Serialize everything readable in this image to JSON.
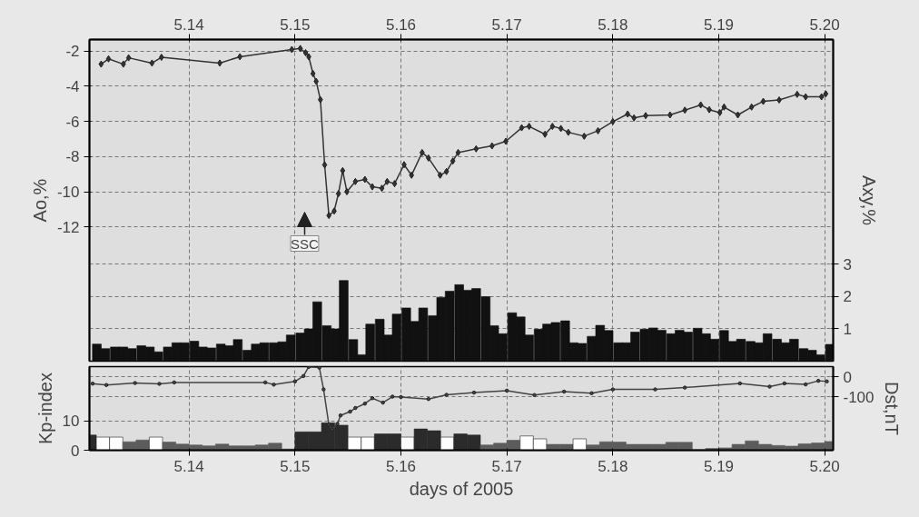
{
  "chart_data": [
    {
      "type": "line",
      "ylabel": "Ao,%",
      "y2label": "Axy,%",
      "xlim": [
        5.1306,
        5.2008
      ],
      "xticks": [
        {
          "value": 5.14,
          "label": "5.14"
        },
        {
          "value": 5.15,
          "label": "5.15"
        },
        {
          "value": 5.16,
          "label": "5.16"
        },
        {
          "value": 5.17,
          "label": "5.17"
        },
        {
          "value": 5.18,
          "label": "5.18"
        },
        {
          "value": 5.19,
          "label": "5.19"
        },
        {
          "value": 5.2,
          "label": "5.20"
        }
      ],
      "ylim": [
        -19.64,
        -1.34
      ],
      "yticks": [
        -12,
        -10,
        -8,
        -6,
        -4,
        -2
      ],
      "y2lim": [
        0,
        9.97
      ],
      "y2ticks": [
        1,
        2,
        3
      ],
      "grid": true,
      "annotations": [
        "SSC"
      ],
      "series": [
        {
          "type": "bar",
          "axis": "y2",
          "color": "#111111",
          "x": [
            5.1313,
            5.1321,
            5.133,
            5.1338,
            5.1346,
            5.1355,
            5.1363,
            5.1371,
            5.138,
            5.1388,
            5.1396,
            5.1405,
            5.1413,
            5.1421,
            5.143,
            5.1438,
            5.1446,
            5.1455,
            5.1463,
            5.1471,
            5.148,
            5.1488,
            5.1496,
            5.1505,
            5.1513,
            5.1521,
            5.153,
            5.1538,
            5.1546,
            5.1555,
            5.1563,
            5.1571,
            5.158,
            5.1588,
            5.1596,
            5.1605,
            5.1613,
            5.1621,
            5.163,
            5.1638,
            5.1646,
            5.1655,
            5.1663,
            5.1671,
            5.168,
            5.1688,
            5.1696,
            5.1705,
            5.1713,
            5.1721,
            5.173,
            5.1738,
            5.1746,
            5.1755,
            5.1763,
            5.1771,
            5.178,
            5.1788,
            5.1796,
            5.1805,
            5.1813,
            5.1821,
            5.183,
            5.1838,
            5.1846,
            5.1855,
            5.1863,
            5.1871,
            5.188,
            5.1888,
            5.1896,
            5.1905,
            5.1913,
            5.1921,
            5.193,
            5.1938,
            5.1946,
            5.1955,
            5.1963,
            5.1971,
            5.198,
            5.1988,
            5.1996,
            5.2005
          ],
          "values": [
            0.53,
            0.39,
            0.44,
            0.44,
            0.39,
            0.48,
            0.44,
            0.29,
            0.44,
            0.57,
            0.57,
            0.62,
            0.44,
            0.41,
            0.53,
            0.48,
            0.67,
            0.34,
            0.53,
            0.57,
            0.57,
            0.6,
            0.81,
            0.87,
            1.0,
            1.84,
            1.1,
            1.0,
            2.5,
            0.67,
            0.2,
            1.15,
            1.3,
            0.81,
            1.46,
            1.65,
            1.23,
            1.65,
            1.41,
            1.98,
            2.17,
            2.37,
            2.2,
            2.25,
            2.0,
            1.1,
            0.85,
            1.5,
            1.37,
            0.81,
            0.99,
            1.15,
            1.2,
            1.25,
            0.57,
            0.55,
            0.77,
            1.11,
            0.95,
            0.57,
            0.57,
            0.9,
            0.99,
            1.03,
            0.96,
            0.85,
            0.96,
            0.9,
            1.02,
            0.85,
            0.68,
            0.95,
            0.61,
            0.68,
            0.61,
            0.57,
            0.85,
            0.68,
            0.57,
            0.68,
            0.39,
            0.34,
            0.2,
            0.52
          ]
        },
        {
          "color": "#333333",
          "marker": "diamond",
          "x": [
            5.1317,
            5.1324,
            5.1338,
            5.1343,
            5.1365,
            5.1374,
            5.1429,
            5.1448,
            5.1497,
            5.1505,
            5.151,
            5.1513,
            5.1517,
            5.152,
            5.1524,
            5.1528,
            5.1532,
            5.1537,
            5.1541,
            5.1545,
            5.1549,
            5.1557,
            5.1566,
            5.1573,
            5.1582,
            5.1587,
            5.1594,
            5.1603,
            5.161,
            5.162,
            5.1626,
            5.1637,
            5.1643,
            5.1649,
            5.1654,
            5.1671,
            5.1686,
            5.1699,
            5.1714,
            5.1721,
            5.1736,
            5.1743,
            5.1751,
            5.1758,
            5.1773,
            5.1786,
            5.18,
            5.1814,
            5.182,
            5.1831,
            5.1854,
            5.1868,
            5.1883,
            5.1891,
            5.1901,
            5.1905,
            5.1918,
            5.1931,
            5.1942,
            5.1957,
            5.1974,
            5.1982,
            5.1997,
            5.2001
          ],
          "values": [
            -2.74,
            -2.44,
            -2.74,
            -2.38,
            -2.68,
            -2.35,
            -2.68,
            -2.32,
            -1.91,
            -1.85,
            -2.09,
            -2.32,
            -3.28,
            -3.72,
            -4.76,
            -8.47,
            -11.35,
            -11.1,
            -10.11,
            -8.8,
            -10.0,
            -9.42,
            -9.3,
            -9.72,
            -9.8,
            -9.42,
            -9.54,
            -8.46,
            -9.06,
            -7.77,
            -8.08,
            -9.06,
            -8.85,
            -8.25,
            -7.77,
            -7.56,
            -7.39,
            -7.13,
            -6.36,
            -6.28,
            -6.73,
            -6.28,
            -6.4,
            -6.62,
            -6.84,
            -6.53,
            -6.01,
            -5.58,
            -5.8,
            -5.67,
            -5.63,
            -5.36,
            -5.06,
            -5.33,
            -5.5,
            -5.18,
            -5.63,
            -5.18,
            -4.86,
            -4.78,
            -4.46,
            -4.6,
            -4.6,
            -4.43
          ]
        }
      ]
    },
    {
      "type": "bar",
      "xlabel": "days of 2005",
      "ylabel": "Kp-index",
      "y2label": "Dst,nT",
      "xlim": [
        5.1306,
        5.2008
      ],
      "xticks": [
        {
          "value": 5.14,
          "label": "5.14"
        },
        {
          "value": 5.15,
          "label": "5.15"
        },
        {
          "value": 5.16,
          "label": "5.16"
        },
        {
          "value": 5.17,
          "label": "5.17"
        },
        {
          "value": 5.18,
          "label": "5.18"
        },
        {
          "value": 5.19,
          "label": "5.19"
        },
        {
          "value": 5.2,
          "label": "5.20"
        }
      ],
      "ylim": [
        0,
        28.7
      ],
      "yticks": [
        0,
        10
      ],
      "y2lim": [
        -368,
        50
      ],
      "y2ticks": [
        -100,
        0
      ],
      "grid": true,
      "series": [
        {
          "x": [
            5.130625,
            5.131875,
            5.133125,
            5.134375,
            5.135625,
            5.136875,
            5.138125,
            5.139375,
            5.140625,
            5.141875,
            5.143125,
            5.144375,
            5.145625,
            5.146875,
            5.148125,
            5.149375,
            5.150625,
            5.151875,
            5.153125,
            5.154375,
            5.155625,
            5.156875,
            5.158125,
            5.159375,
            5.160625,
            5.161875,
            5.163125,
            5.164375,
            5.165625,
            5.166875,
            5.168125,
            5.169375,
            5.170625,
            5.171875,
            5.173125,
            5.174375,
            5.175625,
            5.176875,
            5.178125,
            5.179375,
            5.180625,
            5.181875,
            5.183125,
            5.184375,
            5.185625,
            5.186875,
            5.188125,
            5.189375,
            5.190625,
            5.191875,
            5.193125,
            5.194375,
            5.195625,
            5.196875,
            5.198125,
            5.199375,
            5.200625
          ],
          "values": [
            5.2,
            4.5,
            4.5,
            2.9,
            3.5,
            4.5,
            2.8,
            2.1,
            1.8,
            1.5,
            2.1,
            1.5,
            1.5,
            1.8,
            2.4,
            0.4,
            6.3,
            6.3,
            9.4,
            8.6,
            4.5,
            4.5,
            5.6,
            5.6,
            4.5,
            7.3,
            6.7,
            4.5,
            5.6,
            5.2,
            1.8,
            2.4,
            3.4,
            4.9,
            3.9,
            2.0,
            2.0,
            3.9,
            1.8,
            2.9,
            2.8,
            2.0,
            2.0,
            2.0,
            2.7,
            2.7,
            0,
            0.6,
            0.8,
            2.0,
            3.2,
            2.0,
            1.6,
            1.4,
            2.2,
            2.5,
            3.0
          ],
          "colors": [
            "#2b2b2b",
            "#ffffff",
            "#ffffff",
            "#5c5c5c",
            "#5c5c5c",
            "#ffffff",
            "#5c5c5c",
            "#5c5c5c",
            "#5c5c5c",
            "#5c5c5c",
            "#5c5c5c",
            "#5c5c5c",
            "#5c5c5c",
            "#5c5c5c",
            "#5c5c5c",
            "#5c5c5c",
            "#2b2b2b",
            "#2b2b2b",
            "#2b2b2b",
            "#2b2b2b",
            "#ffffff",
            "#ffffff",
            "#2b2b2b",
            "#2b2b2b",
            "#ffffff",
            "#2b2b2b",
            "#2b2b2b",
            "#ffffff",
            "#2b2b2b",
            "#2b2b2b",
            "#5c5c5c",
            "#5c5c5c",
            "#5c5c5c",
            "#ffffff",
            "#ffffff",
            "#5c5c5c",
            "#5c5c5c",
            "#ffffff",
            "#5c5c5c",
            "#5c5c5c",
            "#5c5c5c",
            "#5c5c5c",
            "#5c5c5c",
            "#5c5c5c",
            "#5c5c5c",
            "#5c5c5c",
            "#5c5c5c",
            "#5c5c5c",
            "#5c5c5c",
            "#5c5c5c",
            "#5c5c5c",
            "#5c5c5c",
            "#5c5c5c",
            "#5c5c5c",
            "#5c5c5c",
            "#5c5c5c",
            "#5c5c5c"
          ]
        },
        {
          "type": "line",
          "axis": "y2",
          "color": "#444444",
          "marker": "circle",
          "x": [
            5.1309,
            5.1322,
            5.1349,
            5.1372,
            5.1386,
            5.1472,
            5.148,
            5.15,
            5.1508,
            5.1513,
            5.1523,
            5.1527,
            5.1532,
            5.1535,
            5.154,
            5.1543,
            5.1552,
            5.1557,
            5.1566,
            5.1573,
            5.1583,
            5.1592,
            5.16,
            5.1626,
            5.1643,
            5.1669,
            5.17,
            5.1726,
            5.1754,
            5.178,
            5.18,
            5.184,
            5.1868,
            5.192,
            5.1948,
            5.1962,
            5.1982,
            5.1994,
            5.2002
          ],
          "values": [
            -35,
            -42,
            -32,
            -36,
            -29,
            -29,
            -40,
            -24,
            3,
            49,
            45,
            -64,
            -240,
            -264,
            -236,
            -194,
            -175,
            -157,
            -135,
            -108,
            -130,
            -100,
            -102,
            -112,
            -91,
            -80,
            -70,
            -92,
            -75,
            -83,
            -64,
            -64,
            -55,
            -34,
            -50,
            -34,
            -39,
            -21,
            -24
          ]
        }
      ]
    }
  ]
}
